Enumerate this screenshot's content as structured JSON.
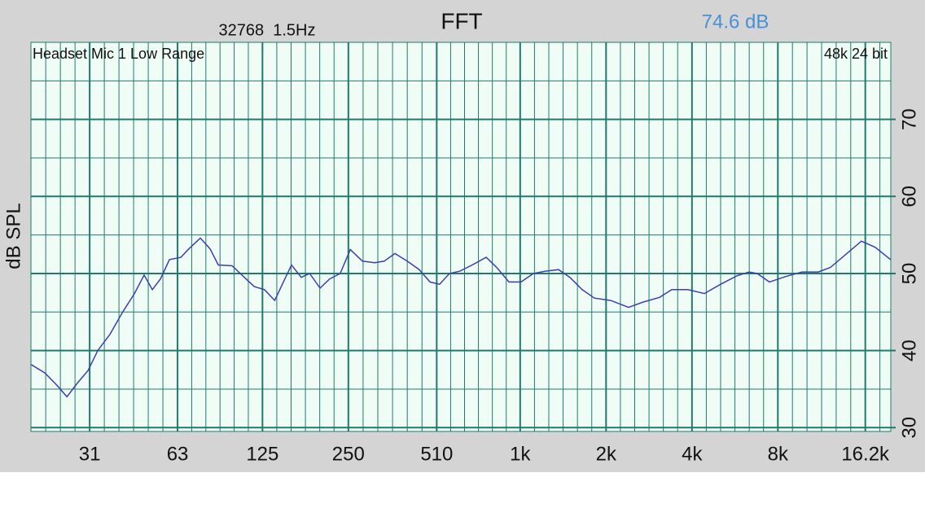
{
  "chart_data": {
    "type": "line",
    "title": "FFT",
    "annotations": [
      "32768  1.5Hz",
      "74.6 dB",
      "Headset Mic 1 Low Range",
      "48k 24 bit"
    ],
    "y_label": "dB SPL",
    "xscale": "log",
    "xlim": [
      19.3,
      19900
    ],
    "ylim": [
      29.5,
      80
    ],
    "xticks": [
      31,
      63,
      125,
      250,
      510,
      {
        "value": 1000,
        "label": "1k"
      },
      {
        "value": 2000,
        "label": "2k"
      },
      {
        "value": 4000,
        "label": "4k"
      },
      {
        "value": 8000,
        "label": "8k"
      },
      {
        "value": 16200,
        "label": "16.2k"
      }
    ],
    "yticks": [
      30,
      40,
      50,
      60,
      70
    ],
    "grid": true,
    "x": [
      19.3,
      21.6,
      23.8,
      25.8,
      28.1,
      30.6,
      33.1,
      36.5,
      40.3,
      44.5,
      48.1,
      51.4,
      54.9,
      59.0,
      64.7,
      69.0,
      75.7,
      81.9,
      87.5,
      97.8,
      108,
      117,
      127,
      138,
      148,
      158,
      171,
      183,
      199,
      215,
      234,
      254,
      280,
      309,
      334,
      364,
      402,
      443,
      483,
      522,
      565,
      615,
      679,
      760,
      827,
      913,
      1007,
      1112,
      1227,
      1363,
      1494,
      1650,
      1820,
      2077,
      2398,
      2700,
      3080,
      3398,
      3874,
      4420,
      5039,
      5748,
      6342,
      6774,
      7473,
      8525,
      9720,
      11086,
      12234,
      13956,
      15703,
      17555,
      19879
    ],
    "series": [
      {
        "color": "#3a3fb0",
        "values": [
          38.2,
          37.1,
          35.5,
          34.0,
          35.8,
          37.4,
          40.0,
          42.1,
          44.9,
          47.4,
          49.8,
          47.9,
          49.3,
          51.8,
          52.1,
          53.2,
          54.6,
          53.2,
          51.1,
          51.0,
          49.5,
          48.3,
          47.9,
          46.5,
          48.9,
          51.1,
          49.5,
          50.0,
          48.1,
          49.3,
          50.0,
          53.1,
          51.6,
          51.4,
          51.6,
          52.6,
          51.6,
          50.5,
          48.9,
          48.6,
          50.0,
          50.3,
          51.1,
          52.1,
          50.8,
          48.9,
          48.9,
          50.0,
          50.3,
          50.5,
          49.5,
          47.9,
          46.8,
          46.5,
          45.6,
          46.3,
          46.9,
          47.9,
          47.9,
          47.4,
          48.6,
          49.7,
          50.2,
          50.0,
          48.9,
          49.6,
          50.2,
          50.2,
          50.8,
          52.6,
          54.2,
          53.4,
          51.8
        ]
      }
    ]
  }
}
